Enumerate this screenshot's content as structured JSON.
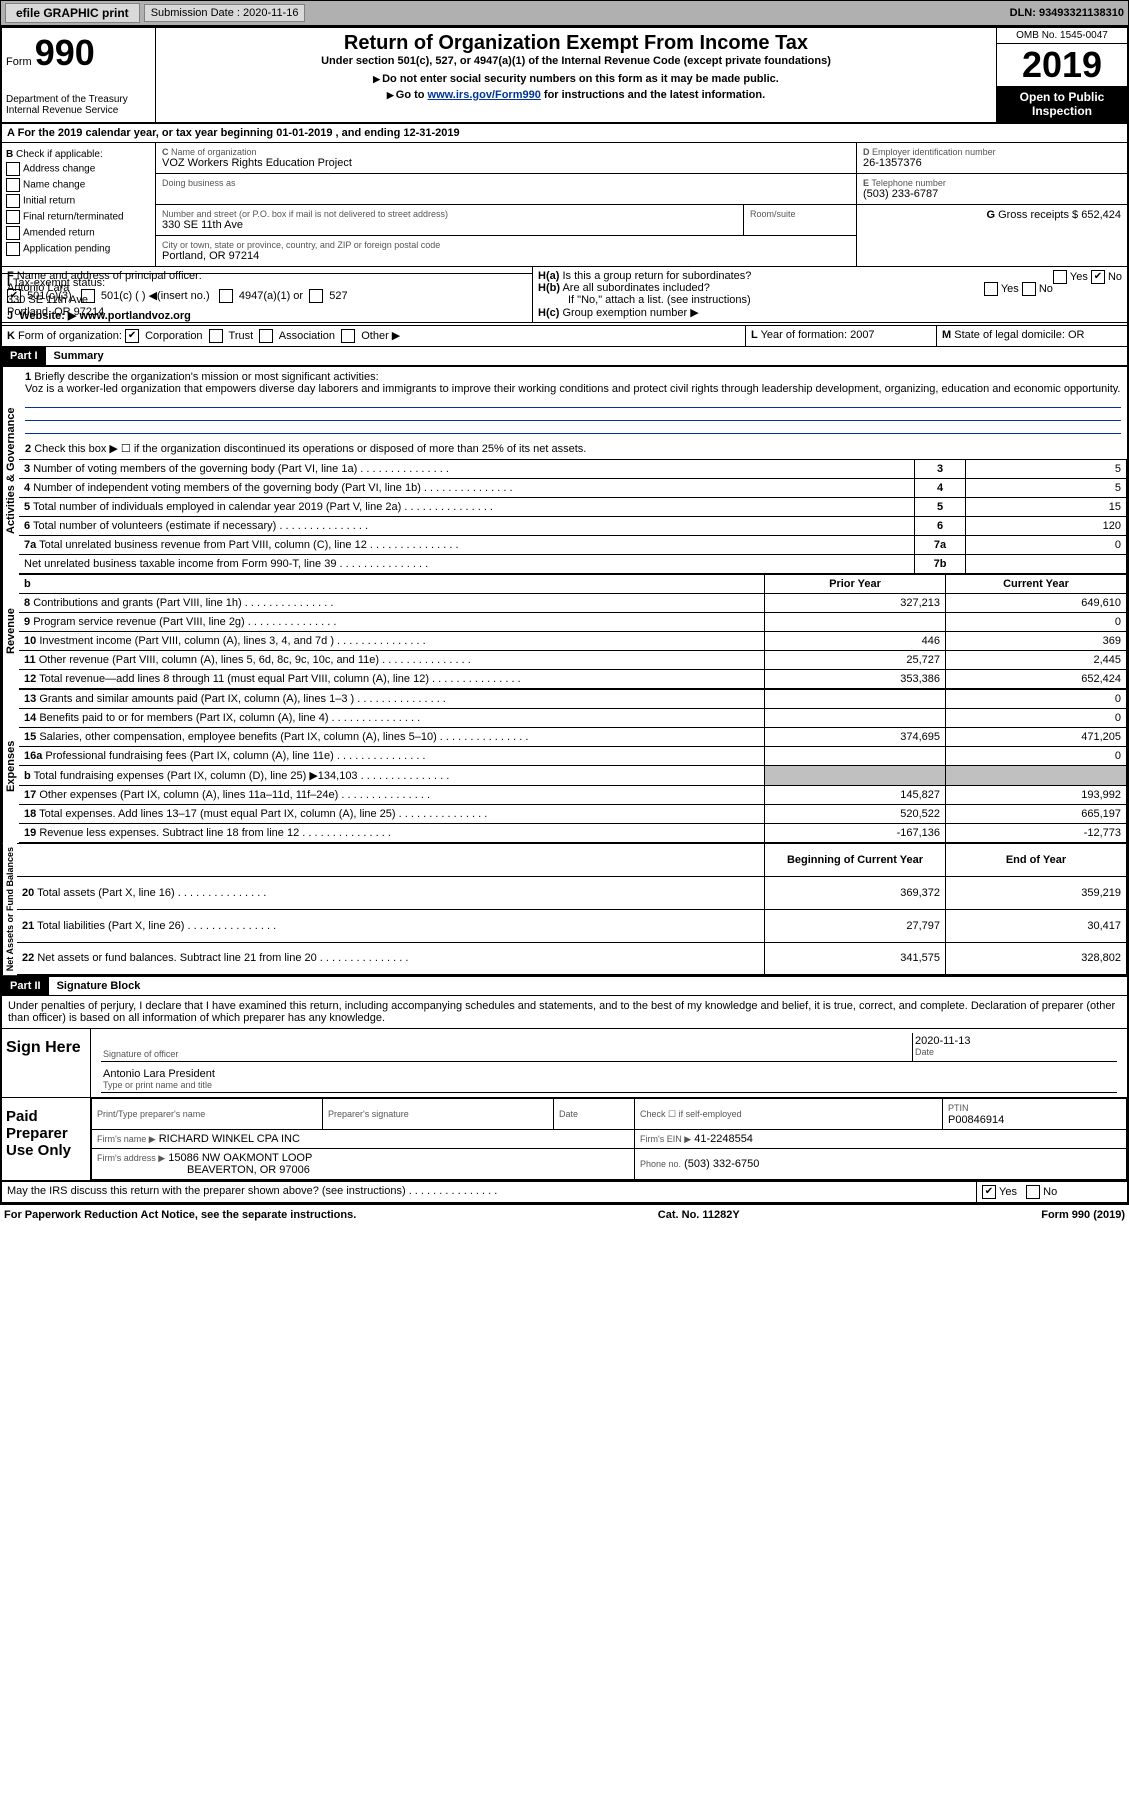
{
  "topbar": {
    "efile": "efile GRAPHIC print",
    "submission_label": "Submission Date : 2020-11-16",
    "dln": "DLN: 93493321138310"
  },
  "header": {
    "form_prefix": "Form",
    "form_no": "990",
    "dept": "Department of the Treasury\nInternal Revenue Service",
    "title": "Return of Organization Exempt From Income Tax",
    "subtitle": "Under section 501(c), 527, or 4947(a)(1) of the Internal Revenue Code (except private foundations)",
    "note1": "Do not enter social security numbers on this form as it may be made public.",
    "note2_pre": "Go to ",
    "note2_link": "www.irs.gov/Form990",
    "note2_post": " for instructions and the latest information.",
    "omb": "OMB No. 1545-0047",
    "year": "2019",
    "inspect": "Open to Public Inspection"
  },
  "lineA": "For the 2019 calendar year, or tax year beginning 01-01-2019    , and ending 12-31-2019",
  "boxB": {
    "label": "Check if applicable:",
    "items": [
      "Address change",
      "Name change",
      "Initial return",
      "Final return/terminated",
      "Amended return",
      "Application pending"
    ]
  },
  "boxC": {
    "name_label": "Name of organization",
    "name": "VOZ Workers Rights Education Project",
    "dba_label": "Doing business as",
    "addr_label": "Number and street (or P.O. box if mail is not delivered to street address)",
    "room_label": "Room/suite",
    "addr": "330 SE 11th Ave",
    "city_label": "City or town, state or province, country, and ZIP or foreign postal code",
    "city": "Portland, OR  97214"
  },
  "boxD": {
    "label": "Employer identification number",
    "val": "26-1357376"
  },
  "boxE": {
    "label": "Telephone number",
    "val": "(503) 233-6787"
  },
  "boxG": {
    "label": "Gross receipts $",
    "val": "652,424"
  },
  "boxF": {
    "label": "Name and address of principal officer:",
    "name": "Antonio Lara",
    "addr1": "330 SE 11th Ave",
    "addr2": "Portland, OR  97214"
  },
  "boxH": {
    "a": "Is this a group return for subordinates?",
    "a_yes": "Yes",
    "a_no": "No",
    "b": "Are all subordinates included?",
    "b_note": "If \"No,\" attach a list. (see instructions)",
    "c": "Group exemption number ▶"
  },
  "taxexempt": {
    "label": "Tax-exempt status:",
    "c3": "501(c)(3)",
    "c_blank": "501(c) (   ) ◀(insert no.)",
    "a1": "4947(a)(1) or",
    "s527": "527"
  },
  "boxJ": {
    "label": "Website: ▶",
    "val": "www.portlandvoz.org"
  },
  "boxK": {
    "label": "Form of organization:",
    "corp": "Corporation",
    "trust": "Trust",
    "assoc": "Association",
    "other": "Other ▶"
  },
  "boxL": {
    "label": "Year of formation:",
    "val": "2007"
  },
  "boxM": {
    "label": "State of legal domicile:",
    "val": "OR"
  },
  "part1": {
    "hdr": "Part I",
    "title": "Summary"
  },
  "mission": {
    "q": "Briefly describe the organization's mission or most significant activities:",
    "text": "Voz is a worker-led organization that empowers diverse day laborers and immigrants to improve their working conditions and protect civil rights through leadership development, organizing, education and economic opportunity."
  },
  "gov": {
    "l2": "Check this box ▶ ☐ if the organization discontinued its operations or disposed of more than 25% of its net assets.",
    "l3": {
      "t": "Number of voting members of the governing body (Part VI, line 1a)",
      "n": "3",
      "v": "5"
    },
    "l4": {
      "t": "Number of independent voting members of the governing body (Part VI, line 1b)",
      "n": "4",
      "v": "5"
    },
    "l5": {
      "t": "Total number of individuals employed in calendar year 2019 (Part V, line 2a)",
      "n": "5",
      "v": "15"
    },
    "l6": {
      "t": "Total number of volunteers (estimate if necessary)",
      "n": "6",
      "v": "120"
    },
    "l7a": {
      "t": "Total unrelated business revenue from Part VIII, column (C), line 12",
      "n": "7a",
      "v": "0"
    },
    "l7b": {
      "t": "Net unrelated business taxable income from Form 990-T, line 39",
      "n": "7b",
      "v": ""
    }
  },
  "cols": {
    "prior": "Prior Year",
    "current": "Current Year"
  },
  "revenue_label": "Revenue",
  "rev": [
    {
      "n": "8",
      "t": "Contributions and grants (Part VIII, line 1h)",
      "p": "327,213",
      "c": "649,610"
    },
    {
      "n": "9",
      "t": "Program service revenue (Part VIII, line 2g)",
      "p": "",
      "c": "0"
    },
    {
      "n": "10",
      "t": "Investment income (Part VIII, column (A), lines 3, 4, and 7d )",
      "p": "446",
      "c": "369"
    },
    {
      "n": "11",
      "t": "Other revenue (Part VIII, column (A), lines 5, 6d, 8c, 9c, 10c, and 11e)",
      "p": "25,727",
      "c": "2,445"
    },
    {
      "n": "12",
      "t": "Total revenue—add lines 8 through 11 (must equal Part VIII, column (A), line 12)",
      "p": "353,386",
      "c": "652,424"
    }
  ],
  "expenses_label": "Expenses",
  "exp": [
    {
      "n": "13",
      "t": "Grants and similar amounts paid (Part IX, column (A), lines 1–3 )",
      "p": "",
      "c": "0"
    },
    {
      "n": "14",
      "t": "Benefits paid to or for members (Part IX, column (A), line 4)",
      "p": "",
      "c": "0"
    },
    {
      "n": "15",
      "t": "Salaries, other compensation, employee benefits (Part IX, column (A), lines 5–10)",
      "p": "374,695",
      "c": "471,205"
    },
    {
      "n": "16a",
      "t": "Professional fundraising fees (Part IX, column (A), line 11e)",
      "p": "",
      "c": "0"
    },
    {
      "n": "b",
      "t": "Total fundraising expenses (Part IX, column (D), line 25) ▶134,103",
      "p": "SHADE",
      "c": "SHADE"
    },
    {
      "n": "17",
      "t": "Other expenses (Part IX, column (A), lines 11a–11d, 11f–24e)",
      "p": "145,827",
      "c": "193,992"
    },
    {
      "n": "18",
      "t": "Total expenses. Add lines 13–17 (must equal Part IX, column (A), line 25)",
      "p": "520,522",
      "c": "665,197"
    },
    {
      "n": "19",
      "t": "Revenue less expenses. Subtract line 18 from line 12",
      "p": "-167,136",
      "c": "-12,773"
    }
  ],
  "net_label": "Net Assets or Fund Balances",
  "net_cols": {
    "beg": "Beginning of Current Year",
    "end": "End of Year"
  },
  "net": [
    {
      "n": "20",
      "t": "Total assets (Part X, line 16)",
      "p": "369,372",
      "c": "359,219"
    },
    {
      "n": "21",
      "t": "Total liabilities (Part X, line 26)",
      "p": "27,797",
      "c": "30,417"
    },
    {
      "n": "22",
      "t": "Net assets or fund balances. Subtract line 21 from line 20",
      "p": "341,575",
      "c": "328,802"
    }
  ],
  "part2": {
    "hdr": "Part II",
    "title": "Signature Block"
  },
  "penalties": "Under penalties of perjury, I declare that I have examined this return, including accompanying schedules and statements, and to the best of my knowledge and belief, it is true, correct, and complete. Declaration of preparer (other than officer) is based on all information of which preparer has any knowledge.",
  "sign": {
    "here": "Sign Here",
    "sig_label": "Signature of officer",
    "date_label": "Date",
    "date": "2020-11-13",
    "name": "Antonio Lara  President",
    "name_label": "Type or print name and title"
  },
  "paid": {
    "hdr": "Paid Preparer Use Only",
    "c1": "Print/Type preparer's name",
    "c2": "Preparer's signature",
    "c3": "Date",
    "c4_pre": "Check ☐ if self-employed",
    "ptin_label": "PTIN",
    "ptin": "P00846914",
    "firm_label": "Firm's name   ▶",
    "firm": "RICHARD WINKEL CPA INC",
    "ein_label": "Firm's EIN ▶",
    "ein": "41-2248554",
    "addr_label": "Firm's address ▶",
    "addr1": "15086 NW OAKMONT LOOP",
    "addr2": "BEAVERTON, OR  97006",
    "phone_label": "Phone no.",
    "phone": "(503) 332-6750",
    "discuss": "May the IRS discuss this return with the preparer shown above? (see instructions)",
    "yes": "Yes",
    "no": "No"
  },
  "footer": {
    "left": "For Paperwork Reduction Act Notice, see the separate instructions.",
    "mid": "Cat. No. 11282Y",
    "right": "Form 990 (2019)"
  }
}
